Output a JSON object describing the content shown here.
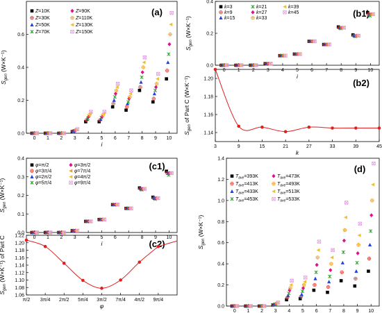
{
  "chart_data": [
    {
      "panel": "(a)",
      "type": "scatter",
      "xlabel": "i",
      "ylabel": "Sgen (W×K⁻¹)",
      "xlim": [
        -0.6,
        10.6
      ],
      "ylim": [
        0,
        0.8
      ],
      "xticks": [
        "0",
        "1",
        "2",
        "3",
        "4",
        "5",
        "6",
        "7",
        "8",
        "9",
        "10"
      ],
      "yticks": [
        "0.0",
        "0.2",
        "0.4",
        "0.6"
      ],
      "legend": "top-left, 2 columns",
      "x": [
        0,
        1,
        2,
        3,
        4,
        5,
        6,
        7,
        8,
        9,
        10
      ],
      "series": [
        {
          "name": "Z=10K",
          "marker": "square",
          "color": "#000000",
          "values": [
            0,
            0,
            0,
            0.01,
            0.07,
            0.07,
            0.16,
            0.14,
            0.26,
            0.19,
            0.33
          ]
        },
        {
          "name": "Z=30K",
          "marker": "circle-plus",
          "color": "#e8453c",
          "values": [
            0,
            0,
            0,
            0.012,
            0.08,
            0.08,
            0.18,
            0.16,
            0.28,
            0.21,
            0.38
          ]
        },
        {
          "name": "Z=50K",
          "marker": "triangle",
          "color": "#2040e0",
          "values": [
            0,
            0,
            0,
            0.014,
            0.085,
            0.085,
            0.2,
            0.18,
            0.31,
            0.24,
            0.43
          ]
        },
        {
          "name": "Z=70K",
          "marker": "x-star",
          "color": "#30a030",
          "values": [
            0,
            0,
            0,
            0.016,
            0.09,
            0.095,
            0.22,
            0.19,
            0.34,
            0.26,
            0.48
          ]
        },
        {
          "name": "Z=90K",
          "marker": "diamond",
          "color": "#e0108c",
          "values": [
            0,
            0,
            0,
            0.018,
            0.1,
            0.1,
            0.24,
            0.21,
            0.37,
            0.28,
            0.54
          ]
        },
        {
          "name": "Z=110K",
          "marker": "circle-plus",
          "color": "#f0a020",
          "values": [
            0,
            0,
            0,
            0.02,
            0.11,
            0.11,
            0.26,
            0.22,
            0.4,
            0.3,
            0.6
          ]
        },
        {
          "name": "Z=130K",
          "marker": "triangle-left",
          "color": "#f0c030",
          "values": [
            0,
            0,
            0,
            0.022,
            0.12,
            0.12,
            0.28,
            0.24,
            0.43,
            0.33,
            0.66
          ]
        },
        {
          "name": "Z=150K",
          "marker": "square-x",
          "color": "#e0a0e0",
          "values": [
            0,
            0,
            0,
            0.025,
            0.13,
            0.13,
            0.3,
            0.26,
            0.46,
            0.36,
            0.73
          ]
        }
      ]
    },
    {
      "panel": "(b1)",
      "type": "scatter",
      "xlabel": "i",
      "ylabel": "Sgen (W×K⁻¹)",
      "xlim": [
        -0.6,
        10.6
      ],
      "ylim": [
        0,
        0.4
      ],
      "xticks": [
        "0",
        "1",
        "2",
        "3",
        "4",
        "5",
        "6",
        "7",
        "8",
        "9",
        "10"
      ],
      "yticks": [
        "0.0",
        "0.2",
        "0.4"
      ],
      "legend": "top-left, 3 columns",
      "x": [
        0,
        1,
        2,
        3,
        4,
        5,
        6,
        7,
        8,
        9,
        10
      ],
      "series": [
        {
          "name": "k=3",
          "marker": "square",
          "color": "#000000",
          "values": [
            0,
            0,
            0,
            0.01,
            0.06,
            0.07,
            0.15,
            0.13,
            0.24,
            0.19,
            0.33
          ]
        },
        {
          "name": "k=9",
          "marker": "circle-plus",
          "color": "#e8453c",
          "values": [
            0,
            0,
            0,
            0.01,
            0.06,
            0.07,
            0.15,
            0.13,
            0.235,
            0.185,
            0.32
          ]
        },
        {
          "name": "k=15",
          "marker": "triangle",
          "color": "#2040e0",
          "values": [
            0,
            0,
            0,
            0.01,
            0.06,
            0.07,
            0.15,
            0.13,
            0.235,
            0.185,
            0.32
          ]
        },
        {
          "name": "k=21",
          "marker": "x-star",
          "color": "#30a030",
          "values": [
            0,
            0,
            0,
            0.01,
            0.06,
            0.07,
            0.15,
            0.13,
            0.23,
            0.18,
            0.31
          ]
        },
        {
          "name": "k=27",
          "marker": "diamond",
          "color": "#e0108c",
          "values": [
            0,
            0,
            0,
            0.01,
            0.06,
            0.07,
            0.15,
            0.13,
            0.235,
            0.185,
            0.32
          ]
        },
        {
          "name": "k=33",
          "marker": "circle-plus",
          "color": "#f0a020",
          "values": [
            0,
            0,
            0,
            0.01,
            0.06,
            0.07,
            0.15,
            0.13,
            0.235,
            0.185,
            0.32
          ]
        },
        {
          "name": "k=39",
          "marker": "triangle-left",
          "color": "#f0c030",
          "values": [
            0,
            0,
            0,
            0.01,
            0.06,
            0.07,
            0.15,
            0.13,
            0.235,
            0.185,
            0.32
          ]
        },
        {
          "name": "k=45",
          "marker": "square-x",
          "color": "#e0a0e0",
          "values": [
            0,
            0,
            0,
            0.01,
            0.06,
            0.07,
            0.15,
            0.13,
            0.235,
            0.185,
            0.32
          ]
        }
      ]
    },
    {
      "panel": "(b2)",
      "type": "line",
      "xlabel": "k",
      "ylabel": "Sgen of Part C (W×K⁻¹)",
      "xlim": [
        3,
        45
      ],
      "ylim": [
        1.13,
        1.21
      ],
      "xticks": [
        "3",
        "9",
        "15",
        "21",
        "27",
        "33",
        "39",
        "45"
      ],
      "yticks": [
        "1.14",
        "1.16",
        "1.18",
        "1.20"
      ],
      "color": "#e02020",
      "x": [
        3,
        9,
        15,
        21,
        27,
        33,
        39,
        45
      ],
      "y": [
        1.21,
        1.147,
        1.146,
        1.141,
        1.146,
        1.145,
        1.145,
        1.145
      ]
    },
    {
      "panel": "(c1)",
      "type": "scatter",
      "xlabel": "i",
      "ylabel": "Sgen (W×K⁻¹)",
      "xlim": [
        -0.6,
        10.6
      ],
      "ylim": [
        0,
        0.4
      ],
      "xticks": [
        "0",
        "1",
        "2",
        "3",
        "4",
        "5",
        "6",
        "7",
        "8",
        "9",
        "10"
      ],
      "yticks": [
        "0.0",
        "0.1",
        "0.2",
        "0.3",
        "0.4"
      ],
      "legend": "top-left, 2 columns",
      "x": [
        0,
        1,
        2,
        3,
        4,
        5,
        6,
        7,
        8,
        9,
        10
      ],
      "series": [
        {
          "name": "φ=π/2",
          "marker": "square",
          "color": "#000000",
          "values": [
            0,
            0,
            0,
            0.01,
            0.06,
            0.07,
            0.15,
            0.13,
            0.24,
            0.19,
            0.33
          ]
        },
        {
          "name": "φ=3π/4",
          "marker": "circle-plus",
          "color": "#e8453c",
          "values": [
            0,
            0,
            0,
            0.01,
            0.06,
            0.07,
            0.15,
            0.13,
            0.235,
            0.185,
            0.32
          ]
        },
        {
          "name": "φ=2π/2",
          "marker": "triangle",
          "color": "#2040e0",
          "values": [
            0,
            0,
            0,
            0.01,
            0.06,
            0.07,
            0.15,
            0.13,
            0.235,
            0.185,
            0.32
          ]
        },
        {
          "name": "φ=5π/4",
          "marker": "x-star",
          "color": "#30a030",
          "values": [
            0,
            0,
            0,
            0.01,
            0.06,
            0.07,
            0.15,
            0.13,
            0.23,
            0.18,
            0.31
          ]
        },
        {
          "name": "φ=3π/2",
          "marker": "diamond",
          "color": "#e0108c",
          "values": [
            0,
            0,
            0,
            0.01,
            0.06,
            0.07,
            0.15,
            0.13,
            0.235,
            0.185,
            0.32
          ]
        },
        {
          "name": "φ=7π/4",
          "marker": "triangle-left",
          "color": "#f0a020",
          "values": [
            0,
            0,
            0,
            0.01,
            0.06,
            0.07,
            0.15,
            0.13,
            0.235,
            0.185,
            0.32
          ]
        },
        {
          "name": "φ=4π/2",
          "marker": "triangle-left",
          "color": "#f0c030",
          "values": [
            0,
            0,
            0,
            0.01,
            0.06,
            0.07,
            0.15,
            0.13,
            0.235,
            0.185,
            0.32
          ]
        },
        {
          "name": "φ=9π/4",
          "marker": "square-x",
          "color": "#e0a0e0",
          "values": [
            0,
            0,
            0,
            0.01,
            0.06,
            0.07,
            0.15,
            0.13,
            0.235,
            0.185,
            0.32
          ]
        }
      ]
    },
    {
      "panel": "(c2)",
      "type": "line",
      "xlabel": "φ",
      "ylabel": "Sgen (W×K⁻¹) of Part C",
      "xlim": [
        0,
        8
      ],
      "ylim": [
        1.06,
        1.22
      ],
      "xticks": [
        "π/2",
        "3π/4",
        "2π/2",
        "5π/4",
        "3π/2",
        "7π/4",
        "4π/2",
        "9π/4"
      ],
      "yticks": [
        "1.06",
        "1.08",
        "1.10",
        "1.12",
        "1.14",
        "1.16",
        "1.18",
        "1.20",
        "1.22"
      ],
      "color": "#e02020",
      "x": [
        0,
        1,
        2,
        3,
        4,
        5,
        6,
        7
      ],
      "y": [
        1.207,
        1.19,
        1.145,
        1.099,
        1.078,
        1.1,
        1.148,
        1.19
      ]
    },
    {
      "panel": "(d)",
      "type": "scatter",
      "xlabel": "i",
      "ylabel": "Sgen (W×K⁻¹)",
      "xlim": [
        -0.6,
        10.6
      ],
      "ylim": [
        0,
        1.4
      ],
      "xticks": [
        "0",
        "1",
        "2",
        "3",
        "4",
        "5",
        "6",
        "7",
        "8",
        "9",
        "10"
      ],
      "yticks": [
        "0.0",
        "0.2",
        "0.4",
        "0.6",
        "0.8",
        "1.0",
        "1.2",
        "1.4"
      ],
      "legend": "top-left, 2 columns",
      "x": [
        0,
        1,
        2,
        3,
        4,
        5,
        6,
        7,
        8,
        9,
        10
      ],
      "series": [
        {
          "name": "Tave=393K",
          "marker": "square",
          "color": "#000000",
          "values": [
            0,
            0,
            0,
            0.01,
            0.06,
            0.07,
            0.15,
            0.13,
            0.24,
            0.19,
            0.33
          ]
        },
        {
          "name": "Tave=413K",
          "marker": "circle-plus",
          "color": "#e8453c",
          "values": [
            0,
            0,
            0,
            0.012,
            0.08,
            0.09,
            0.2,
            0.18,
            0.32,
            0.26,
            0.45
          ]
        },
        {
          "name": "Tave=433K",
          "marker": "triangle",
          "color": "#2040e0",
          "values": [
            0,
            0,
            0,
            0.015,
            0.1,
            0.11,
            0.26,
            0.23,
            0.41,
            0.33,
            0.58
          ]
        },
        {
          "name": "Tave=453K",
          "marker": "x-star",
          "color": "#30a030",
          "values": [
            0,
            0,
            0,
            0.018,
            0.12,
            0.14,
            0.32,
            0.28,
            0.51,
            0.41,
            0.71
          ]
        },
        {
          "name": "Tave=473K",
          "marker": "diamond",
          "color": "#e0108c",
          "values": [
            0,
            0,
            0,
            0.022,
            0.15,
            0.17,
            0.39,
            0.34,
            0.62,
            0.5,
            0.86
          ]
        },
        {
          "name": "Tave=493K",
          "marker": "circle-plus",
          "color": "#f0a020",
          "values": [
            0,
            0,
            0,
            0.025,
            0.17,
            0.2,
            0.46,
            0.4,
            0.72,
            0.58,
            1.0
          ]
        },
        {
          "name": "Tave=513K",
          "marker": "triangle-left",
          "color": "#f0c030",
          "values": [
            0,
            0,
            0,
            0.03,
            0.2,
            0.23,
            0.53,
            0.46,
            0.84,
            0.67,
            1.15
          ]
        },
        {
          "name": "Tave=533K",
          "marker": "square-x",
          "color": "#e0a0e0",
          "values": [
            0,
            0,
            0,
            0.034,
            0.24,
            0.27,
            0.61,
            0.53,
            0.98,
            0.78,
            1.35
          ]
        }
      ]
    }
  ]
}
